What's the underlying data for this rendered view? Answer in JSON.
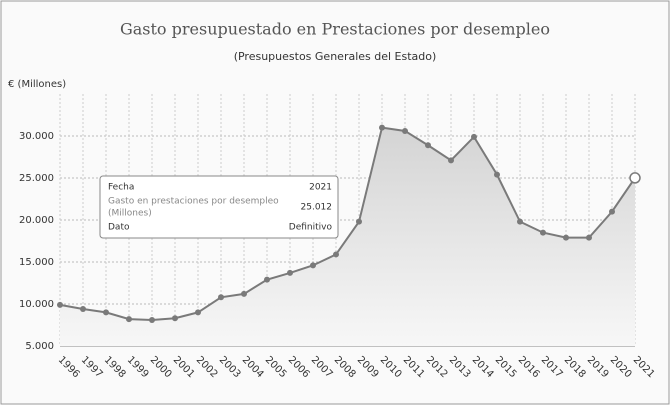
{
  "chart_data": {
    "type": "line",
    "title": "Gasto presupuestado en Prestaciones por desempleo",
    "subtitle": "(Presupuestos Generales del Estado)",
    "y_label": "€ (Millones)",
    "categories": [
      "1996",
      "1997",
      "1998",
      "1999",
      "2000",
      "2001",
      "2002",
      "2003",
      "2004",
      "2005",
      "2006",
      "2007",
      "2008",
      "2009",
      "2010",
      "2011",
      "2012",
      "2013",
      "2014",
      "2015",
      "2016",
      "2017",
      "2018",
      "2019",
      "2020",
      "2021"
    ],
    "series": [
      {
        "name": "Gasto en prestaciones por desempleo",
        "color": "#7a7a7a",
        "values": [
          9900,
          9400,
          9000,
          8200,
          8100,
          8300,
          9000,
          10800,
          11200,
          12900,
          13700,
          14600,
          15900,
          19800,
          31000,
          30600,
          28900,
          27100,
          29900,
          25400,
          19800,
          18500,
          17900,
          17900,
          21000,
          25012
        ]
      }
    ],
    "ylim": [
      5000,
      35000
    ],
    "yticks": [
      {
        "value": 5000,
        "label": "5.000"
      },
      {
        "value": 10000,
        "label": "10.000"
      },
      {
        "value": 15000,
        "label": "15.000"
      },
      {
        "value": 20000,
        "label": "20.000"
      },
      {
        "value": 25000,
        "label": "25.000"
      },
      {
        "value": 30000,
        "label": "30.000"
      }
    ],
    "grid": true,
    "tooltip": {
      "date_label": "Fecha",
      "date": "2021",
      "series_label": "Gasto en prestaciones por desempleo",
      "unit": "(Millones)",
      "value_text": "25.012",
      "type_label": "Dato",
      "type": "Definitivo"
    }
  }
}
